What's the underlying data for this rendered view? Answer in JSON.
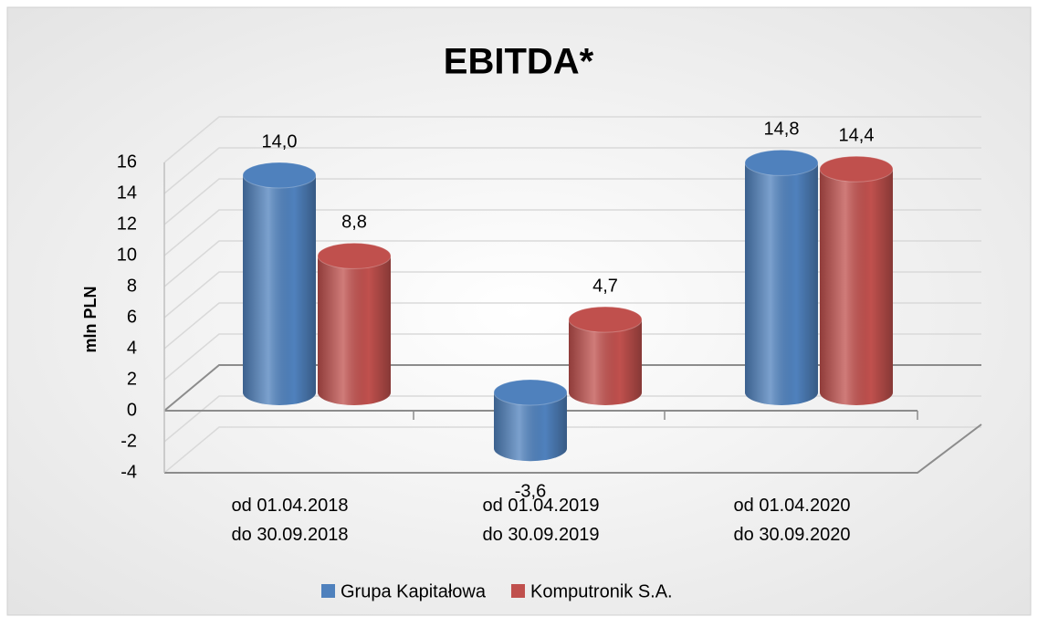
{
  "chart_data": {
    "type": "bar",
    "title": "EBITDA*",
    "y_label": "mln PLN",
    "categories": [
      [
        "od 01.04.2018",
        "do 30.09.2018"
      ],
      [
        "od 01.04.2019",
        "do 30.09.2019"
      ],
      [
        "od 01.04.2020",
        "do 30.09.2020"
      ]
    ],
    "series": [
      {
        "name": "Grupa Kapitałowa",
        "color": "#4f81bd",
        "values": [
          14.0,
          -3.6,
          14.8
        ],
        "value_labels": [
          "14,0",
          "-3,6",
          "14,8"
        ]
      },
      {
        "name": "Komputronik S.A.",
        "color": "#c0504d",
        "values": [
          8.8,
          4.7,
          14.4
        ],
        "value_labels": [
          "8,8",
          "4,7",
          "14,4"
        ]
      }
    ],
    "ylim": [
      -4,
      16
    ],
    "yticks": [
      -4,
      -2,
      0,
      2,
      4,
      6,
      8,
      10,
      12,
      14,
      16
    ],
    "grid": true,
    "legend": "bottom"
  }
}
